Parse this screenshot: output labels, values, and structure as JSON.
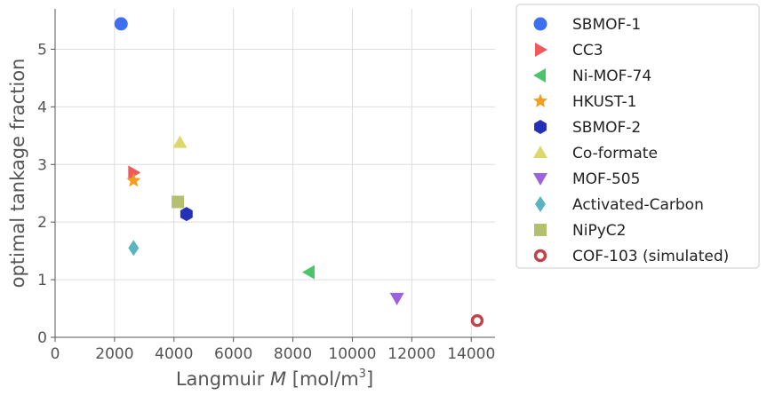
{
  "chart_data": {
    "type": "scatter",
    "xlabel": {
      "prefix": "Langmuir ",
      "var": "M",
      "unit_open": " [mol/m",
      "sup": "3",
      "unit_close": "]"
    },
    "ylabel": "optimal tankage fraction",
    "xlim": [
      0,
      14800
    ],
    "ylim": [
      0,
      5.7
    ],
    "xticks": [
      0,
      2000,
      4000,
      6000,
      8000,
      10000,
      12000,
      14000
    ],
    "yticks": [
      0,
      1,
      2,
      3,
      4,
      5
    ],
    "grid": true,
    "legend_position": "outside-right",
    "series": [
      {
        "name": "SBMOF-1",
        "x": 2220,
        "y": 5.44,
        "marker": "circle",
        "color": "#3d6ff0"
      },
      {
        "name": "CC3",
        "x": 2640,
        "y": 2.86,
        "marker": "triangle-right",
        "color": "#f05a5a"
      },
      {
        "name": "Ni-MOF-74",
        "x": 8550,
        "y": 1.13,
        "marker": "triangle-left",
        "color": "#4cc46a"
      },
      {
        "name": "HKUST-1",
        "x": 2640,
        "y": 2.72,
        "marker": "star",
        "color": "#f59d22"
      },
      {
        "name": "SBMOF-2",
        "x": 4420,
        "y": 2.14,
        "marker": "hexagon",
        "color": "#2430b8"
      },
      {
        "name": "Co-formate",
        "x": 4200,
        "y": 3.38,
        "marker": "triangle-up",
        "color": "#dcd86a"
      },
      {
        "name": "MOF-505",
        "x": 11500,
        "y": 0.68,
        "marker": "triangle-down",
        "color": "#9c62dc"
      },
      {
        "name": "Activated-Carbon",
        "x": 2640,
        "y": 1.55,
        "marker": "diamond",
        "color": "#5bb5c0"
      },
      {
        "name": "NiPyC2",
        "x": 4130,
        "y": 2.35,
        "marker": "square",
        "color": "#b5c06e"
      },
      {
        "name": "COF-103 (simulated)",
        "x": 14200,
        "y": 0.29,
        "marker": "ring",
        "color": "#c0424a"
      }
    ]
  }
}
